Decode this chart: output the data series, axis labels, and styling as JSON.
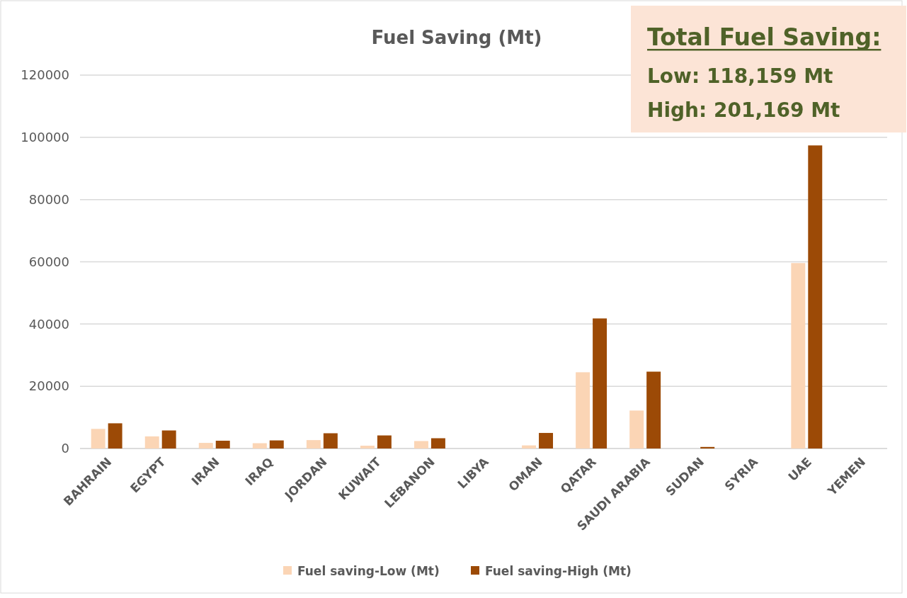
{
  "chart_data": {
    "type": "bar",
    "title": "Fuel Saving (Mt)",
    "categories": [
      "BAHRAIN",
      "EGYPT",
      "IRAN",
      "IRAQ",
      "JORDAN",
      "KUWAIT",
      "LEBANON",
      "LIBYA",
      "OMAN",
      "QATAR",
      "SAUDI ARABIA",
      "SUDAN",
      "SYRIA",
      "UAE",
      "YEMEN"
    ],
    "series": [
      {
        "name": "Fuel saving-Low (Mt)",
        "color": "#fbd5b5",
        "values": [
          6300,
          3900,
          1800,
          1700,
          2700,
          900,
          2400,
          0,
          1000,
          24500,
          12200,
          0,
          0,
          59600,
          0
        ]
      },
      {
        "name": "Fuel saving-High (Mt)",
        "color": "#9c4a06",
        "values": [
          8100,
          5800,
          2500,
          2600,
          4900,
          4200,
          3300,
          0,
          5000,
          41800,
          24700,
          500,
          0,
          97400,
          0
        ]
      }
    ],
    "ylim": [
      0,
      120000
    ],
    "yticks": [
      0,
      20000,
      40000,
      60000,
      80000,
      100000,
      120000
    ],
    "grid": "y",
    "legend": "bottom",
    "annotations": [
      "Total Fuel Saving:",
      "Low: 118,159 Mt",
      "High: 201,169 Mt"
    ]
  }
}
